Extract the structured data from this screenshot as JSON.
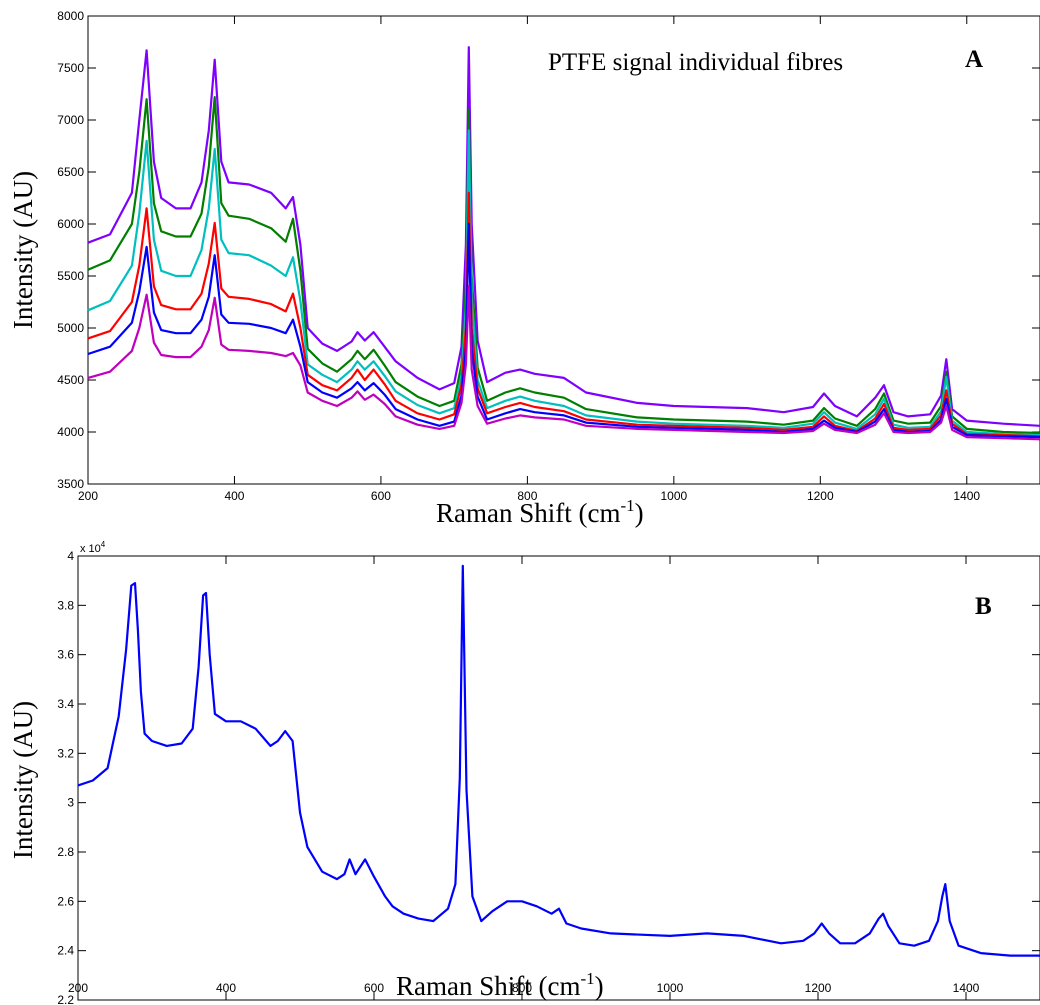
{
  "chart_data": [
    {
      "type": "line",
      "panel_label": "A",
      "title": "PTFE signal individual fibres",
      "xlabel_main": "Raman Shift (cm",
      "xlabel_sup": "-1",
      "xlabel_close": ")",
      "ylabel": "Intensity (AU)",
      "xlim": [
        200,
        1500
      ],
      "ylim": [
        3500,
        8000
      ],
      "xticks": [
        200,
        400,
        600,
        800,
        1000,
        1200,
        1400
      ],
      "yticks": [
        3500,
        4000,
        4500,
        5000,
        5500,
        6000,
        6500,
        7000,
        7500,
        8000
      ],
      "grid": false,
      "baseline_x": [
        200,
        230,
        260,
        270,
        280,
        290,
        300,
        320,
        340,
        355,
        365,
        373,
        382,
        392,
        420,
        450,
        470,
        480,
        490,
        500,
        520,
        540,
        560,
        568,
        578,
        590,
        605,
        620,
        650,
        680,
        700,
        710,
        716,
        720,
        724,
        732,
        745,
        770,
        790,
        810,
        850,
        880,
        950,
        1000,
        1100,
        1150,
        1190,
        1205,
        1220,
        1250,
        1275,
        1287,
        1300,
        1320,
        1350,
        1365,
        1372,
        1380,
        1400,
        1450,
        1500
      ],
      "series": [
        {
          "color": "#7f00ff",
          "values": [
            5820,
            5900,
            6300,
            7000,
            7670,
            6600,
            6250,
            6150,
            6150,
            6400,
            6900,
            7580,
            6600,
            6400,
            6380,
            6300,
            6150,
            6260,
            5800,
            5000,
            4850,
            4780,
            4870,
            4960,
            4880,
            4960,
            4820,
            4680,
            4520,
            4410,
            4470,
            4820,
            5800,
            7700,
            6000,
            4880,
            4480,
            4570,
            4600,
            4560,
            4520,
            4380,
            4280,
            4250,
            4230,
            4190,
            4240,
            4370,
            4250,
            4150,
            4330,
            4450,
            4190,
            4150,
            4170,
            4350,
            4700,
            4220,
            4110,
            4080,
            4060
          ]
        },
        {
          "color": "#007f00",
          "values": [
            5560,
            5650,
            6000,
            6500,
            7200,
            6200,
            5930,
            5880,
            5880,
            6100,
            6550,
            7220,
            6200,
            6080,
            6050,
            5960,
            5830,
            6050,
            5550,
            4800,
            4660,
            4580,
            4700,
            4780,
            4700,
            4790,
            4640,
            4480,
            4340,
            4250,
            4300,
            4650,
            5400,
            7100,
            5500,
            4620,
            4300,
            4380,
            4420,
            4380,
            4330,
            4220,
            4140,
            4120,
            4100,
            4070,
            4110,
            4230,
            4130,
            4060,
            4220,
            4370,
            4110,
            4080,
            4090,
            4250,
            4580,
            4150,
            4030,
            4000,
            3990
          ]
        },
        {
          "color": "#00bfbf",
          "values": [
            5170,
            5260,
            5600,
            6100,
            6800,
            5850,
            5550,
            5500,
            5500,
            5750,
            6150,
            6720,
            5850,
            5720,
            5700,
            5600,
            5500,
            5680,
            5260,
            4650,
            4550,
            4480,
            4600,
            4680,
            4600,
            4680,
            4540,
            4390,
            4260,
            4180,
            4230,
            4540,
            5200,
            6900,
            5300,
            4500,
            4230,
            4300,
            4340,
            4300,
            4250,
            4160,
            4100,
            4080,
            4060,
            4040,
            4080,
            4190,
            4090,
            4030,
            4170,
            4320,
            4070,
            4040,
            4050,
            4200,
            4530,
            4110,
            4000,
            3980,
            3970
          ]
        },
        {
          "color": "#ff0000",
          "values": [
            4900,
            4970,
            5250,
            5600,
            6150,
            5400,
            5220,
            5180,
            5180,
            5330,
            5620,
            6010,
            5380,
            5300,
            5280,
            5230,
            5160,
            5330,
            5000,
            4550,
            4450,
            4400,
            4520,
            4600,
            4500,
            4600,
            4460,
            4300,
            4180,
            4120,
            4170,
            4450,
            5000,
            6300,
            5000,
            4420,
            4180,
            4240,
            4280,
            4240,
            4200,
            4120,
            4070,
            4060,
            4040,
            4020,
            4050,
            4150,
            4060,
            4010,
            4130,
            4270,
            4040,
            4020,
            4030,
            4160,
            4400,
            4080,
            3980,
            3970,
            3960
          ]
        },
        {
          "color": "#0000ff",
          "values": [
            4750,
            4820,
            5050,
            5350,
            5780,
            5150,
            4980,
            4950,
            4950,
            5080,
            5300,
            5700,
            5130,
            5050,
            5040,
            5000,
            4950,
            5080,
            4820,
            4480,
            4380,
            4330,
            4420,
            4480,
            4400,
            4470,
            4360,
            4220,
            4120,
            4060,
            4100,
            4350,
            4800,
            6000,
            4800,
            4340,
            4120,
            4180,
            4220,
            4190,
            4160,
            4090,
            4050,
            4040,
            4020,
            4000,
            4030,
            4110,
            4040,
            4000,
            4100,
            4220,
            4020,
            4000,
            4010,
            4120,
            4320,
            4050,
            3970,
            3960,
            3950
          ]
        },
        {
          "color": "#bf00bf",
          "values": [
            4520,
            4580,
            4780,
            5000,
            5320,
            4860,
            4740,
            4720,
            4720,
            4820,
            4980,
            5290,
            4840,
            4790,
            4780,
            4760,
            4730,
            4760,
            4640,
            4380,
            4300,
            4250,
            4330,
            4390,
            4310,
            4360,
            4270,
            4150,
            4070,
            4030,
            4060,
            4280,
            4650,
            5400,
            4600,
            4250,
            4080,
            4130,
            4160,
            4140,
            4120,
            4060,
            4030,
            4020,
            4000,
            3990,
            4010,
            4080,
            4020,
            3990,
            4070,
            4180,
            4000,
            3990,
            4000,
            4090,
            4250,
            4020,
            3950,
            3940,
            3930
          ]
        }
      ]
    },
    {
      "type": "line",
      "panel_label": "B",
      "xlabel_main": "Raman Shift (cm",
      "xlabel_sup": "-1",
      "xlabel_close": ")",
      "ylabel": "Intensity (AU)",
      "y_multiplier_base": "x 10",
      "y_multiplier_exp": "4",
      "xlim": [
        200,
        1500
      ],
      "ylim": [
        2.2,
        4.0
      ],
      "xticks": [
        200,
        400,
        600,
        800,
        1000,
        1200,
        1400
      ],
      "yticks": [
        2.2,
        2.4,
        2.6,
        2.8,
        3,
        3.2,
        3.4,
        3.6,
        3.8,
        4
      ],
      "grid": false,
      "series": [
        {
          "color": "#0000ff",
          "x": [
            200,
            220,
            240,
            255,
            265,
            272,
            277,
            281,
            285,
            290,
            300,
            320,
            340,
            355,
            363,
            369,
            373,
            378,
            385,
            400,
            420,
            440,
            460,
            470,
            480,
            490,
            500,
            510,
            530,
            550,
            560,
            567,
            575,
            588,
            600,
            615,
            625,
            640,
            660,
            680,
            700,
            710,
            716,
            720,
            725,
            733,
            745,
            760,
            780,
            800,
            820,
            840,
            850,
            860,
            880,
            920,
            1000,
            1050,
            1100,
            1150,
            1180,
            1195,
            1205,
            1215,
            1230,
            1250,
            1270,
            1282,
            1288,
            1295,
            1310,
            1330,
            1350,
            1362,
            1368,
            1372,
            1378,
            1390,
            1420,
            1460,
            1500
          ],
          "y": [
            3.07,
            3.09,
            3.14,
            3.35,
            3.62,
            3.88,
            3.89,
            3.7,
            3.45,
            3.28,
            3.25,
            3.23,
            3.24,
            3.3,
            3.55,
            3.84,
            3.85,
            3.6,
            3.36,
            3.33,
            3.33,
            3.3,
            3.23,
            3.25,
            3.29,
            3.25,
            2.96,
            2.82,
            2.72,
            2.69,
            2.71,
            2.77,
            2.71,
            2.77,
            2.7,
            2.62,
            2.58,
            2.55,
            2.53,
            2.52,
            2.57,
            2.67,
            3.1,
            3.96,
            3.05,
            2.62,
            2.52,
            2.56,
            2.6,
            2.6,
            2.58,
            2.55,
            2.57,
            2.51,
            2.49,
            2.47,
            2.46,
            2.47,
            2.46,
            2.43,
            2.44,
            2.47,
            2.51,
            2.47,
            2.43,
            2.43,
            2.47,
            2.53,
            2.55,
            2.5,
            2.43,
            2.42,
            2.44,
            2.52,
            2.62,
            2.67,
            2.52,
            2.42,
            2.39,
            2.38,
            2.38
          ]
        }
      ]
    }
  ]
}
